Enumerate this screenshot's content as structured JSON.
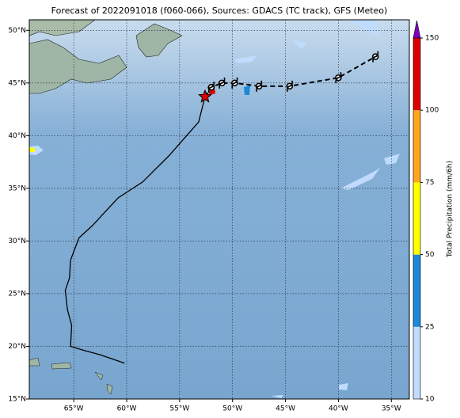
{
  "title": "Forecast of 2022091018 (f060-066), Sources: GDACS (TC track), GFS (Meteo)",
  "map": {
    "xlim": [
      -69.2,
      -33.3
    ],
    "ylim": [
      15,
      51
    ],
    "xticks": [
      {
        "value": -65,
        "label": "65°W"
      },
      {
        "value": -60,
        "label": "60°W"
      },
      {
        "value": -55,
        "label": "55°W"
      },
      {
        "value": -50,
        "label": "50°W"
      },
      {
        "value": -45,
        "label": "45°W"
      },
      {
        "value": -40,
        "label": "40°W"
      },
      {
        "value": -35,
        "label": "35°W"
      }
    ],
    "yticks": [
      {
        "value": 15,
        "label": "15°N"
      },
      {
        "value": 20,
        "label": "20°N"
      },
      {
        "value": 25,
        "label": "25°N"
      },
      {
        "value": 30,
        "label": "30°N"
      },
      {
        "value": 35,
        "label": "35°N"
      },
      {
        "value": 40,
        "label": "40°N"
      },
      {
        "value": 45,
        "label": "45°N"
      },
      {
        "value": 50,
        "label": "50°N"
      }
    ],
    "track": {
      "lon": [
        -60.2,
        -62.5,
        -64.0,
        -65.3,
        -65.2,
        -65.6,
        -65.8,
        -65.4,
        -65.3,
        -64.5,
        -63.3,
        -60.8,
        -58.5,
        -56.0,
        -53.2,
        -52.6
      ],
      "lat": [
        18.4,
        19.2,
        19.6,
        20.0,
        22.0,
        23.5,
        25.3,
        26.5,
        28.2,
        30.3,
        31.4,
        34.1,
        35.6,
        38.1,
        41.3,
        43.7
      ]
    },
    "current": {
      "lon": -52.6,
      "lat": 43.7
    },
    "forecast": {
      "lon": [
        -52.6,
        -52.0,
        -51.0,
        -49.8,
        -47.5,
        -44.6,
        -40.0,
        -36.5
      ],
      "lat": [
        43.7,
        44.6,
        45.0,
        45.0,
        44.7,
        44.7,
        45.5,
        47.5
      ]
    }
  },
  "colorbar": {
    "label": "Total Precipitation (mm/6h)",
    "ticks": [
      10,
      25,
      50,
      75,
      100,
      150
    ],
    "colors": [
      "#bfdcff",
      "#1e88d8",
      "#ffff00",
      "#ffa520",
      "#dd0000"
    ],
    "extend_color": "#8000c0"
  }
}
